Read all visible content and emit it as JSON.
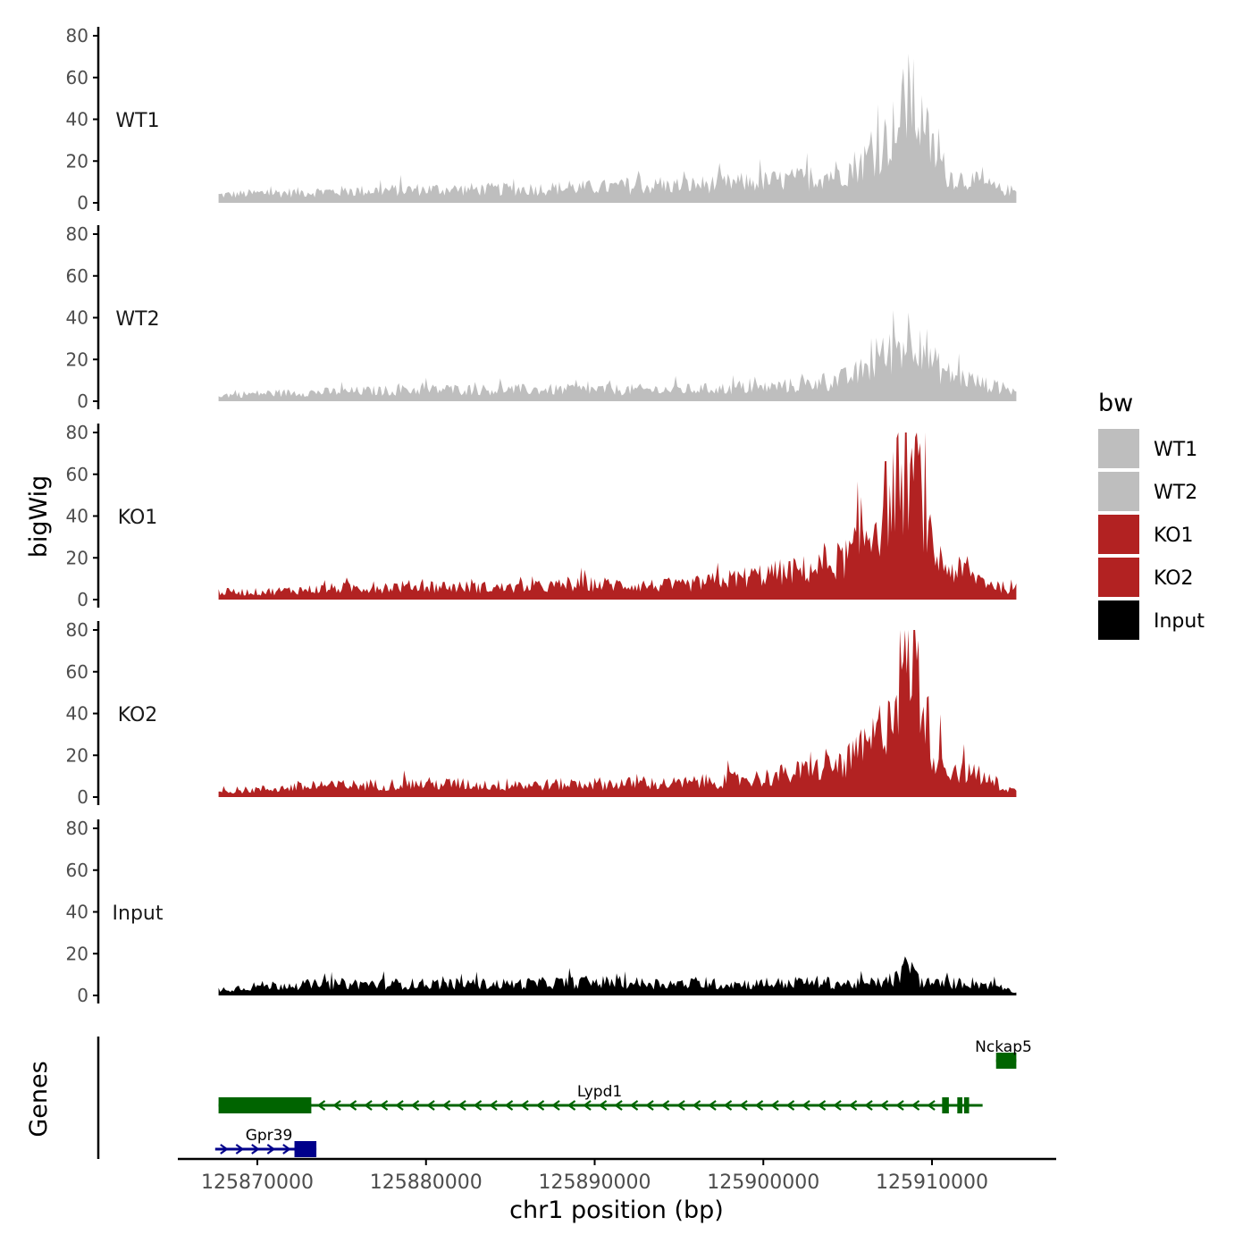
{
  "chart_data": {
    "type": "area",
    "title": "",
    "xlabel": "chr1 position (bp)",
    "ylabel": "bigWig",
    "genes_label": "Genes",
    "x_range": [
      125867700,
      125915000
    ],
    "x_ticks": [
      125870000,
      125880000,
      125890000,
      125900000,
      125910000
    ],
    "x_tick_labels": [
      "125870000",
      "125880000",
      "125890000",
      "125900000",
      "125910000"
    ],
    "ylim": [
      0,
      80
    ],
    "y_ticks": [
      0,
      20,
      40,
      60,
      80
    ],
    "y_tick_labels": [
      "0",
      "20",
      "40",
      "60",
      "80"
    ],
    "legend": {
      "title": "bw",
      "position": "right",
      "entries": [
        {
          "label": "WT1",
          "color": "#BEBEBE"
        },
        {
          "label": "WT2",
          "color": "#BEBEBE"
        },
        {
          "label": "KO1",
          "color": "#B22222"
        },
        {
          "label": "KO2",
          "color": "#B22222"
        },
        {
          "label": "Input",
          "color": "#000000"
        }
      ]
    },
    "series": [
      {
        "name": "WT1",
        "color": "#BEBEBE",
        "x": [
          125867700,
          125870000,
          125875000,
          125880000,
          125885000,
          125890000,
          125895000,
          125900000,
          125903000,
          125905000,
          125906000,
          125907000,
          125908000,
          125908600,
          125909200,
          125910000,
          125911000,
          125912000,
          125913000,
          125914000,
          125915000
        ],
        "values": [
          4,
          5,
          6,
          7,
          7,
          8,
          9,
          11,
          13,
          17,
          22,
          30,
          40,
          55,
          45,
          28,
          14,
          12,
          10,
          7,
          6
        ]
      },
      {
        "name": "WT2",
        "color": "#BEBEBE",
        "x": [
          125867700,
          125870000,
          125875000,
          125880000,
          125885000,
          125890000,
          125895000,
          125900000,
          125903000,
          125905000,
          125906000,
          125907000,
          125908000,
          125908600,
          125909200,
          125910000,
          125911000,
          125912000,
          125913000,
          125914000,
          125915000
        ],
        "values": [
          3,
          4,
          5,
          6,
          6,
          6,
          6,
          7,
          9,
          12,
          16,
          22,
          28,
          34,
          36,
          20,
          14,
          12,
          9,
          7,
          5
        ]
      },
      {
        "name": "KO1",
        "color": "#B22222",
        "x": [
          125867700,
          125870000,
          125875000,
          125880000,
          125885000,
          125890000,
          125895000,
          125900000,
          125903000,
          125905000,
          125906000,
          125907000,
          125908000,
          125908600,
          125909200,
          125910000,
          125911000,
          125912000,
          125913000,
          125914000,
          125915000
        ],
        "values": [
          4,
          4,
          6,
          7,
          6,
          8,
          7,
          13,
          16,
          22,
          32,
          45,
          62,
          68,
          64,
          25,
          16,
          14,
          10,
          7,
          4
        ]
      },
      {
        "name": "KO2",
        "color": "#B22222",
        "x": [
          125867700,
          125870000,
          125875000,
          125880000,
          125885000,
          125890000,
          125895000,
          125900000,
          125903000,
          125905000,
          125906000,
          125907000,
          125908000,
          125908600,
          125909200,
          125910000,
          125911000,
          125912000,
          125913000,
          125914000,
          125915000
        ],
        "values": [
          3,
          4,
          6,
          7,
          6,
          7,
          7,
          10,
          14,
          18,
          24,
          35,
          60,
          78,
          65,
          26,
          15,
          13,
          10,
          6,
          3
        ]
      },
      {
        "name": "Input",
        "color": "#000000",
        "x": [
          125867700,
          125870000,
          125875000,
          125880000,
          125885000,
          125890000,
          125895000,
          125900000,
          125903000,
          125905000,
          125906000,
          125907000,
          125908000,
          125908600,
          125909200,
          125910000,
          125911000,
          125912000,
          125913000,
          125914000,
          125915000
        ],
        "values": [
          3,
          5,
          6,
          6,
          6,
          7,
          6,
          6,
          7,
          6,
          6,
          7,
          9,
          17,
          8,
          6,
          6,
          7,
          6,
          5,
          2
        ]
      }
    ],
    "genes": [
      {
        "name": "Nckap5",
        "color": "#006400",
        "strand": "-",
        "start": 125913800,
        "end": 125915000,
        "row": 0,
        "exons": [
          [
            125913800,
            125915000
          ]
        ]
      },
      {
        "name": "Lypd1",
        "color": "#006400",
        "strand": "-",
        "start": 125867700,
        "end": 125913000,
        "row": 1,
        "exons": [
          [
            125867700,
            125873200
          ],
          [
            125910600,
            125911000
          ],
          [
            125911500,
            125911800
          ],
          [
            125911900,
            125912200
          ]
        ]
      },
      {
        "name": "Gpr39",
        "color": "#00008B",
        "strand": "+",
        "start": 125867500,
        "end": 125873500,
        "row": 2,
        "exons": [
          [
            125872200,
            125873500
          ]
        ]
      }
    ]
  }
}
